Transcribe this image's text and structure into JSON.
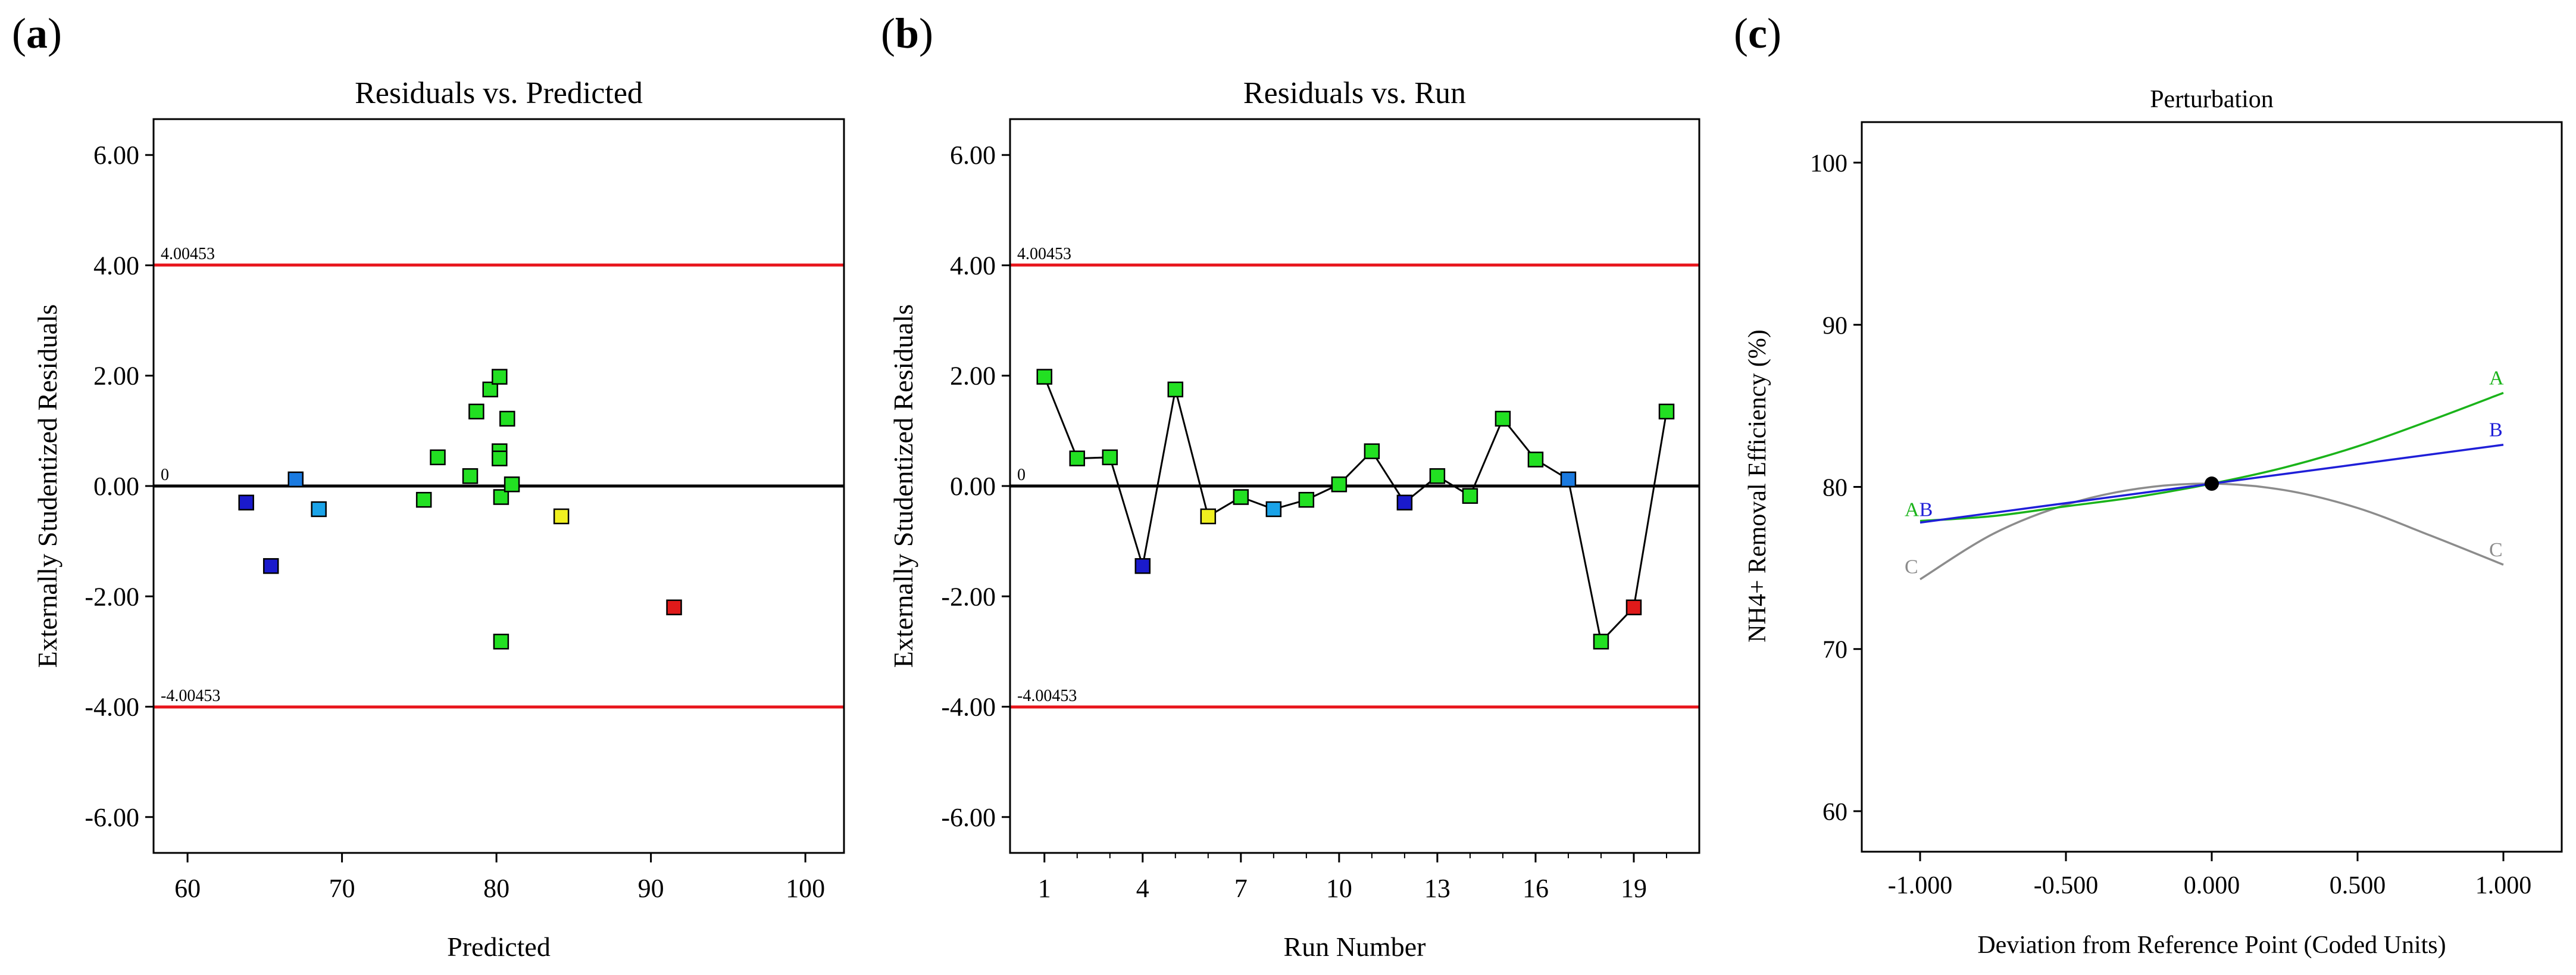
{
  "panels": {
    "a": {
      "letter": "a"
    },
    "b": {
      "letter": "b"
    },
    "c": {
      "letter": "c"
    }
  },
  "colors": {
    "limit_line": "#e8151b",
    "zero_line": "#000000",
    "run_line": "#000000",
    "curve_A": "#1ab31a",
    "curve_B": "#1f1fd8",
    "curve_C": "#8c8c8c"
  },
  "chart_data": [
    {
      "id": "a",
      "type": "scatter",
      "title": "Residuals vs. Predicted",
      "xlabel": "Predicted",
      "ylabel": "Externally Studentized Residuals",
      "xlim": [
        57.8,
        102.5
      ],
      "ylim": [
        -6.65,
        6.65
      ],
      "xticks": [
        60,
        70,
        80,
        90,
        100
      ],
      "yticks": [
        6,
        4,
        2,
        0,
        -2,
        -4,
        -6
      ],
      "ytick_labels": [
        "6.00",
        "4.00",
        "2.00",
        "0.00",
        "-2.00",
        "-4.00",
        "-6.00"
      ],
      "limits": {
        "upper": 4.00453,
        "lower": -4.00453,
        "upper_label": "4.00453",
        "lower_label": "-4.00453",
        "zero_label": "0"
      },
      "points": [
        {
          "x": 63.8,
          "y": -0.3,
          "color": "#1a1acc"
        },
        {
          "x": 65.4,
          "y": -1.45,
          "color": "#1a1acc"
        },
        {
          "x": 67.0,
          "y": 0.12,
          "color": "#1a7ae0"
        },
        {
          "x": 68.5,
          "y": -0.42,
          "color": "#1aa3e8"
        },
        {
          "x": 75.3,
          "y": -0.25,
          "color": "#22e022"
        },
        {
          "x": 76.2,
          "y": 0.52,
          "color": "#22e022"
        },
        {
          "x": 78.3,
          "y": 0.18,
          "color": "#22e022"
        },
        {
          "x": 78.7,
          "y": 1.35,
          "color": "#22e022"
        },
        {
          "x": 79.6,
          "y": 1.75,
          "color": "#22e022"
        },
        {
          "x": 80.2,
          "y": 1.98,
          "color": "#22e022"
        },
        {
          "x": 80.2,
          "y": 0.63,
          "color": "#22e022"
        },
        {
          "x": 80.2,
          "y": 0.5,
          "color": "#22e022"
        },
        {
          "x": 80.3,
          "y": -0.2,
          "color": "#22e022"
        },
        {
          "x": 80.3,
          "y": -2.82,
          "color": "#22e022"
        },
        {
          "x": 80.7,
          "y": 1.22,
          "color": "#22e022"
        },
        {
          "x": 81.0,
          "y": 0.03,
          "color": "#22e022"
        },
        {
          "x": 84.2,
          "y": -0.55,
          "color": "#f0f020"
        },
        {
          "x": 91.5,
          "y": -2.2,
          "color": "#e01a1a"
        }
      ]
    },
    {
      "id": "b",
      "type": "line",
      "title": "Residuals vs. Run",
      "xlabel": "Run Number",
      "ylabel": "Externally Studentized Residuals",
      "xlim": [
        -0.05,
        21.0
      ],
      "ylim": [
        -6.65,
        6.65
      ],
      "xticks": [
        1,
        4,
        7,
        10,
        13,
        16,
        19
      ],
      "xminor": [
        2,
        3,
        5,
        6,
        8,
        9,
        11,
        12,
        14,
        15,
        17,
        18,
        20
      ],
      "yticks": [
        6,
        4,
        2,
        0,
        -2,
        -4,
        -6
      ],
      "ytick_labels": [
        "6.00",
        "4.00",
        "2.00",
        "0.00",
        "-2.00",
        "-4.00",
        "-6.00"
      ],
      "limits": {
        "upper": 4.00453,
        "lower": -4.00453,
        "upper_label": "4.00453",
        "lower_label": "-4.00453",
        "zero_label": "0"
      },
      "points": [
        {
          "x": 1,
          "y": 1.98,
          "color": "#22e022"
        },
        {
          "x": 2,
          "y": 0.5,
          "color": "#22e022"
        },
        {
          "x": 3,
          "y": 0.52,
          "color": "#22e022"
        },
        {
          "x": 4,
          "y": -1.45,
          "color": "#1a1acc"
        },
        {
          "x": 5,
          "y": 1.75,
          "color": "#22e022"
        },
        {
          "x": 6,
          "y": -0.55,
          "color": "#f0f020"
        },
        {
          "x": 7,
          "y": -0.2,
          "color": "#22e022"
        },
        {
          "x": 8,
          "y": -0.42,
          "color": "#1aa3e8"
        },
        {
          "x": 9,
          "y": -0.25,
          "color": "#22e022"
        },
        {
          "x": 10,
          "y": 0.03,
          "color": "#22e022"
        },
        {
          "x": 11,
          "y": 0.63,
          "color": "#22e022"
        },
        {
          "x": 12,
          "y": -0.3,
          "color": "#1a1acc"
        },
        {
          "x": 13,
          "y": 0.18,
          "color": "#22e022"
        },
        {
          "x": 14,
          "y": -0.18,
          "color": "#22e022"
        },
        {
          "x": 15,
          "y": 1.22,
          "color": "#22e022"
        },
        {
          "x": 16,
          "y": 0.48,
          "color": "#22e022"
        },
        {
          "x": 17,
          "y": 0.12,
          "color": "#1a7ae0"
        },
        {
          "x": 18,
          "y": -2.82,
          "color": "#22e022"
        },
        {
          "x": 19,
          "y": -2.2,
          "color": "#e01a1a"
        },
        {
          "x": 20,
          "y": 1.35,
          "color": "#22e022"
        }
      ]
    },
    {
      "id": "c",
      "type": "line",
      "title": "Perturbation",
      "xlabel": "Deviation from Reference Point (Coded Units)",
      "ylabel": "NH4+ Removal Efficiency (%)",
      "xlim": [
        -1.2,
        1.2
      ],
      "ylim": [
        57.5,
        102.5
      ],
      "xticks": [
        -1,
        -0.5,
        0,
        0.5,
        1
      ],
      "xtick_labels": [
        "-1.000",
        "-0.500",
        "0.000",
        "0.500",
        "1.000"
      ],
      "yticks": [
        60,
        70,
        80,
        90,
        100
      ],
      "ytick_labels": [
        "60",
        "70",
        "80",
        "90",
        "100"
      ],
      "reference_point": {
        "x": 0,
        "y": 80.2
      },
      "series": [
        {
          "name": "A",
          "x": [
            -1,
            -0.75,
            -0.5,
            -0.25,
            0,
            0.25,
            0.5,
            0.75,
            1
          ],
          "y": [
            77.9,
            78.2,
            78.8,
            79.4,
            80.2,
            81.2,
            82.5,
            84.1,
            85.8
          ]
        },
        {
          "name": "B",
          "x": [
            -1,
            -0.5,
            0,
            0.5,
            1
          ],
          "y": [
            77.8,
            79.0,
            80.2,
            81.4,
            82.6
          ]
        },
        {
          "name": "C",
          "x": [
            -1,
            -0.75,
            -0.5,
            -0.25,
            0,
            0.25,
            0.5,
            0.75,
            1
          ],
          "y": [
            74.3,
            77.1,
            78.9,
            79.9,
            80.2,
            79.8,
            78.7,
            77.0,
            75.2
          ]
        }
      ],
      "labels_left": {
        "a_b": "AB",
        "c": "C"
      },
      "labels_right": {
        "a": "A",
        "b": "B",
        "c": "C"
      }
    }
  ]
}
